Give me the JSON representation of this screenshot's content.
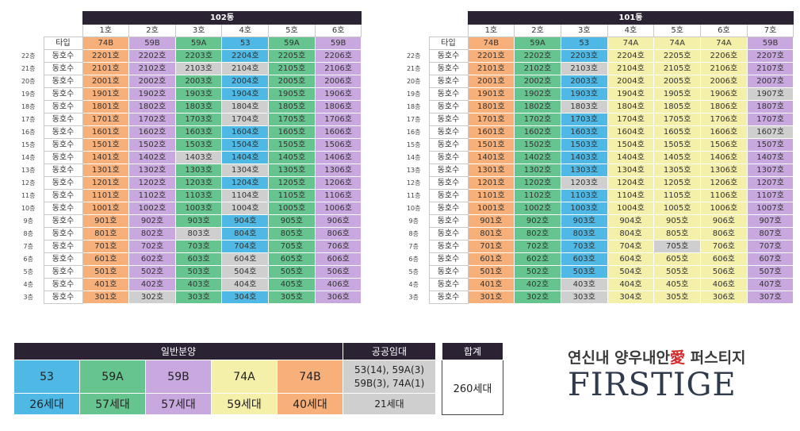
{
  "colors": {
    "53": "#4fb8e5",
    "59A": "#66c48e",
    "59B": "#c8a8de",
    "74A": "#f4efa9",
    "74B": "#f7b07a",
    "gray": "#cfcfcf",
    "header": "#2b2233"
  },
  "type_label": "타입",
  "row_label": "동호수",
  "floors": [
    "22층",
    "21층",
    "20층",
    "19층",
    "18층",
    "17층",
    "16층",
    "15층",
    "14층",
    "13층",
    "12층",
    "11층",
    "10층",
    "9층",
    "8층",
    "7층",
    "6층",
    "5층",
    "4층",
    "3층"
  ],
  "buildings": [
    {
      "name": "102동",
      "units": [
        "1호",
        "2호",
        "3호",
        "4호",
        "5호",
        "6호"
      ],
      "types": [
        "74B",
        "59B",
        "59A",
        "53",
        "59A",
        "59B"
      ],
      "rows": [
        [
          "2201호",
          "2202호",
          "2203호",
          "2204호",
          "2205호",
          "2206호"
        ],
        [
          "2101호",
          "2102호",
          "2103호",
          "2104호",
          "2105호",
          "2106호"
        ],
        [
          "2001호",
          "2002호",
          "2003호",
          "2004호",
          "2005호",
          "2006호"
        ],
        [
          "1901호",
          "1902호",
          "1903호",
          "1904호",
          "1905호",
          "1906호"
        ],
        [
          "1801호",
          "1802호",
          "1803호",
          "1804호",
          "1805호",
          "1806호"
        ],
        [
          "1701호",
          "1702호",
          "1703호",
          "1704호",
          "1705호",
          "1706호"
        ],
        [
          "1601호",
          "1602호",
          "1603호",
          "1604호",
          "1605호",
          "1606호"
        ],
        [
          "1501호",
          "1502호",
          "1503호",
          "1504호",
          "1505호",
          "1506호"
        ],
        [
          "1401호",
          "1402호",
          "1403호",
          "1404호",
          "1405호",
          "1406호"
        ],
        [
          "1301호",
          "1302호",
          "1303호",
          "1304호",
          "1305호",
          "1306호"
        ],
        [
          "1201호",
          "1202호",
          "1203호",
          "1204호",
          "1205호",
          "1206호"
        ],
        [
          "1101호",
          "1102호",
          "1103호",
          "1104호",
          "1105호",
          "1106호"
        ],
        [
          "1001호",
          "1002호",
          "1003호",
          "1004호",
          "1005호",
          "1006호"
        ],
        [
          "901호",
          "902호",
          "903호",
          "904호",
          "905호",
          "906호"
        ],
        [
          "801호",
          "802호",
          "803호",
          "804호",
          "805호",
          "806호"
        ],
        [
          "701호",
          "702호",
          "703호",
          "704호",
          "705호",
          "706호"
        ],
        [
          "601호",
          "602호",
          "603호",
          "604호",
          "605호",
          "606호"
        ],
        [
          "501호",
          "502호",
          "503호",
          "504호",
          "505호",
          "506호"
        ],
        [
          "401호",
          "402호",
          "403호",
          "404호",
          "405호",
          "406호"
        ],
        [
          "301호",
          "302호",
          "303호",
          "304호",
          "305호",
          "306호"
        ]
      ],
      "public_rental": [
        "2103호",
        "2104호",
        "1804호",
        "1704호",
        "1403호",
        "1304호",
        "1104호",
        "1004호",
        "803호",
        "604호",
        "504호",
        "404호",
        "302호"
      ]
    },
    {
      "name": "101동",
      "units": [
        "1호",
        "2호",
        "3호",
        "4호",
        "5호",
        "6호",
        "7호"
      ],
      "types": [
        "74B",
        "59A",
        "53",
        "74A",
        "74A",
        "74A",
        "59B"
      ],
      "rows": [
        [
          "2201호",
          "2202호",
          "2203호",
          "2204호",
          "2205호",
          "2206호",
          "2207호"
        ],
        [
          "2101호",
          "2102호",
          "2103호",
          "2104호",
          "2105호",
          "2106호",
          "2107호"
        ],
        [
          "2001호",
          "2002호",
          "2003호",
          "2004호",
          "2005호",
          "2006호",
          "2007호"
        ],
        [
          "1901호",
          "1902호",
          "1903호",
          "1904호",
          "1905호",
          "1906호",
          "1907호"
        ],
        [
          "1801호",
          "1802호",
          "1803호",
          "1804호",
          "1805호",
          "1806호",
          "1807호"
        ],
        [
          "1701호",
          "1702호",
          "1703호",
          "1704호",
          "1705호",
          "1706호",
          "1707호"
        ],
        [
          "1601호",
          "1602호",
          "1603호",
          "1604호",
          "1605호",
          "1606호",
          "1607호"
        ],
        [
          "1501호",
          "1502호",
          "1503호",
          "1504호",
          "1505호",
          "1506호",
          "1507호"
        ],
        [
          "1401호",
          "1402호",
          "1403호",
          "1404호",
          "1405호",
          "1406호",
          "1407호"
        ],
        [
          "1301호",
          "1302호",
          "1303호",
          "1304호",
          "1305호",
          "1306호",
          "1307호"
        ],
        [
          "1201호",
          "1202호",
          "1203호",
          "1204호",
          "1205호",
          "1206호",
          "1207호"
        ],
        [
          "1101호",
          "1102호",
          "1103호",
          "1104호",
          "1105호",
          "1106호",
          "1107호"
        ],
        [
          "1001호",
          "1002호",
          "1003호",
          "1004호",
          "1005호",
          "1006호",
          "1007호"
        ],
        [
          "901호",
          "902호",
          "903호",
          "904호",
          "905호",
          "906호",
          "907호"
        ],
        [
          "801호",
          "802호",
          "803호",
          "804호",
          "805호",
          "806호",
          "807호"
        ],
        [
          "701호",
          "702호",
          "703호",
          "704호",
          "705호",
          "706호",
          "707호"
        ],
        [
          "601호",
          "602호",
          "603호",
          "604호",
          "605호",
          "606호",
          "607호"
        ],
        [
          "501호",
          "502호",
          "503호",
          "504호",
          "505호",
          "506호",
          "507호"
        ],
        [
          "401호",
          "402호",
          "403호",
          "404호",
          "405호",
          "406호",
          "407호"
        ],
        [
          "301호",
          "302호",
          "303호",
          "304호",
          "305호",
          "306호",
          "307호"
        ]
      ],
      "public_rental": [
        "2103호",
        "1907호",
        "1803호",
        "1607호",
        "1203호",
        "705호",
        "403호",
        "303호"
      ]
    }
  ],
  "legend": {
    "general_sale": "일반분양",
    "public_rental": "공공임대",
    "total": "합계",
    "types": [
      {
        "type": "53",
        "count": "26세대"
      },
      {
        "type": "59A",
        "count": "57세대"
      },
      {
        "type": "59B",
        "count": "57세대"
      },
      {
        "type": "74A",
        "count": "59세대"
      },
      {
        "type": "74B",
        "count": "40세대"
      }
    ],
    "public_detail_line1": "53(14), 59A(3)",
    "public_detail_line2": "59B(3), 74A(1)",
    "public_count": "21세대",
    "total_count": "260세대"
  },
  "brand": {
    "name_part1": "연신내 양우내안",
    "heart": "愛",
    "name_part2": " 퍼스티지",
    "name_en": "FIRSTIGE"
  }
}
